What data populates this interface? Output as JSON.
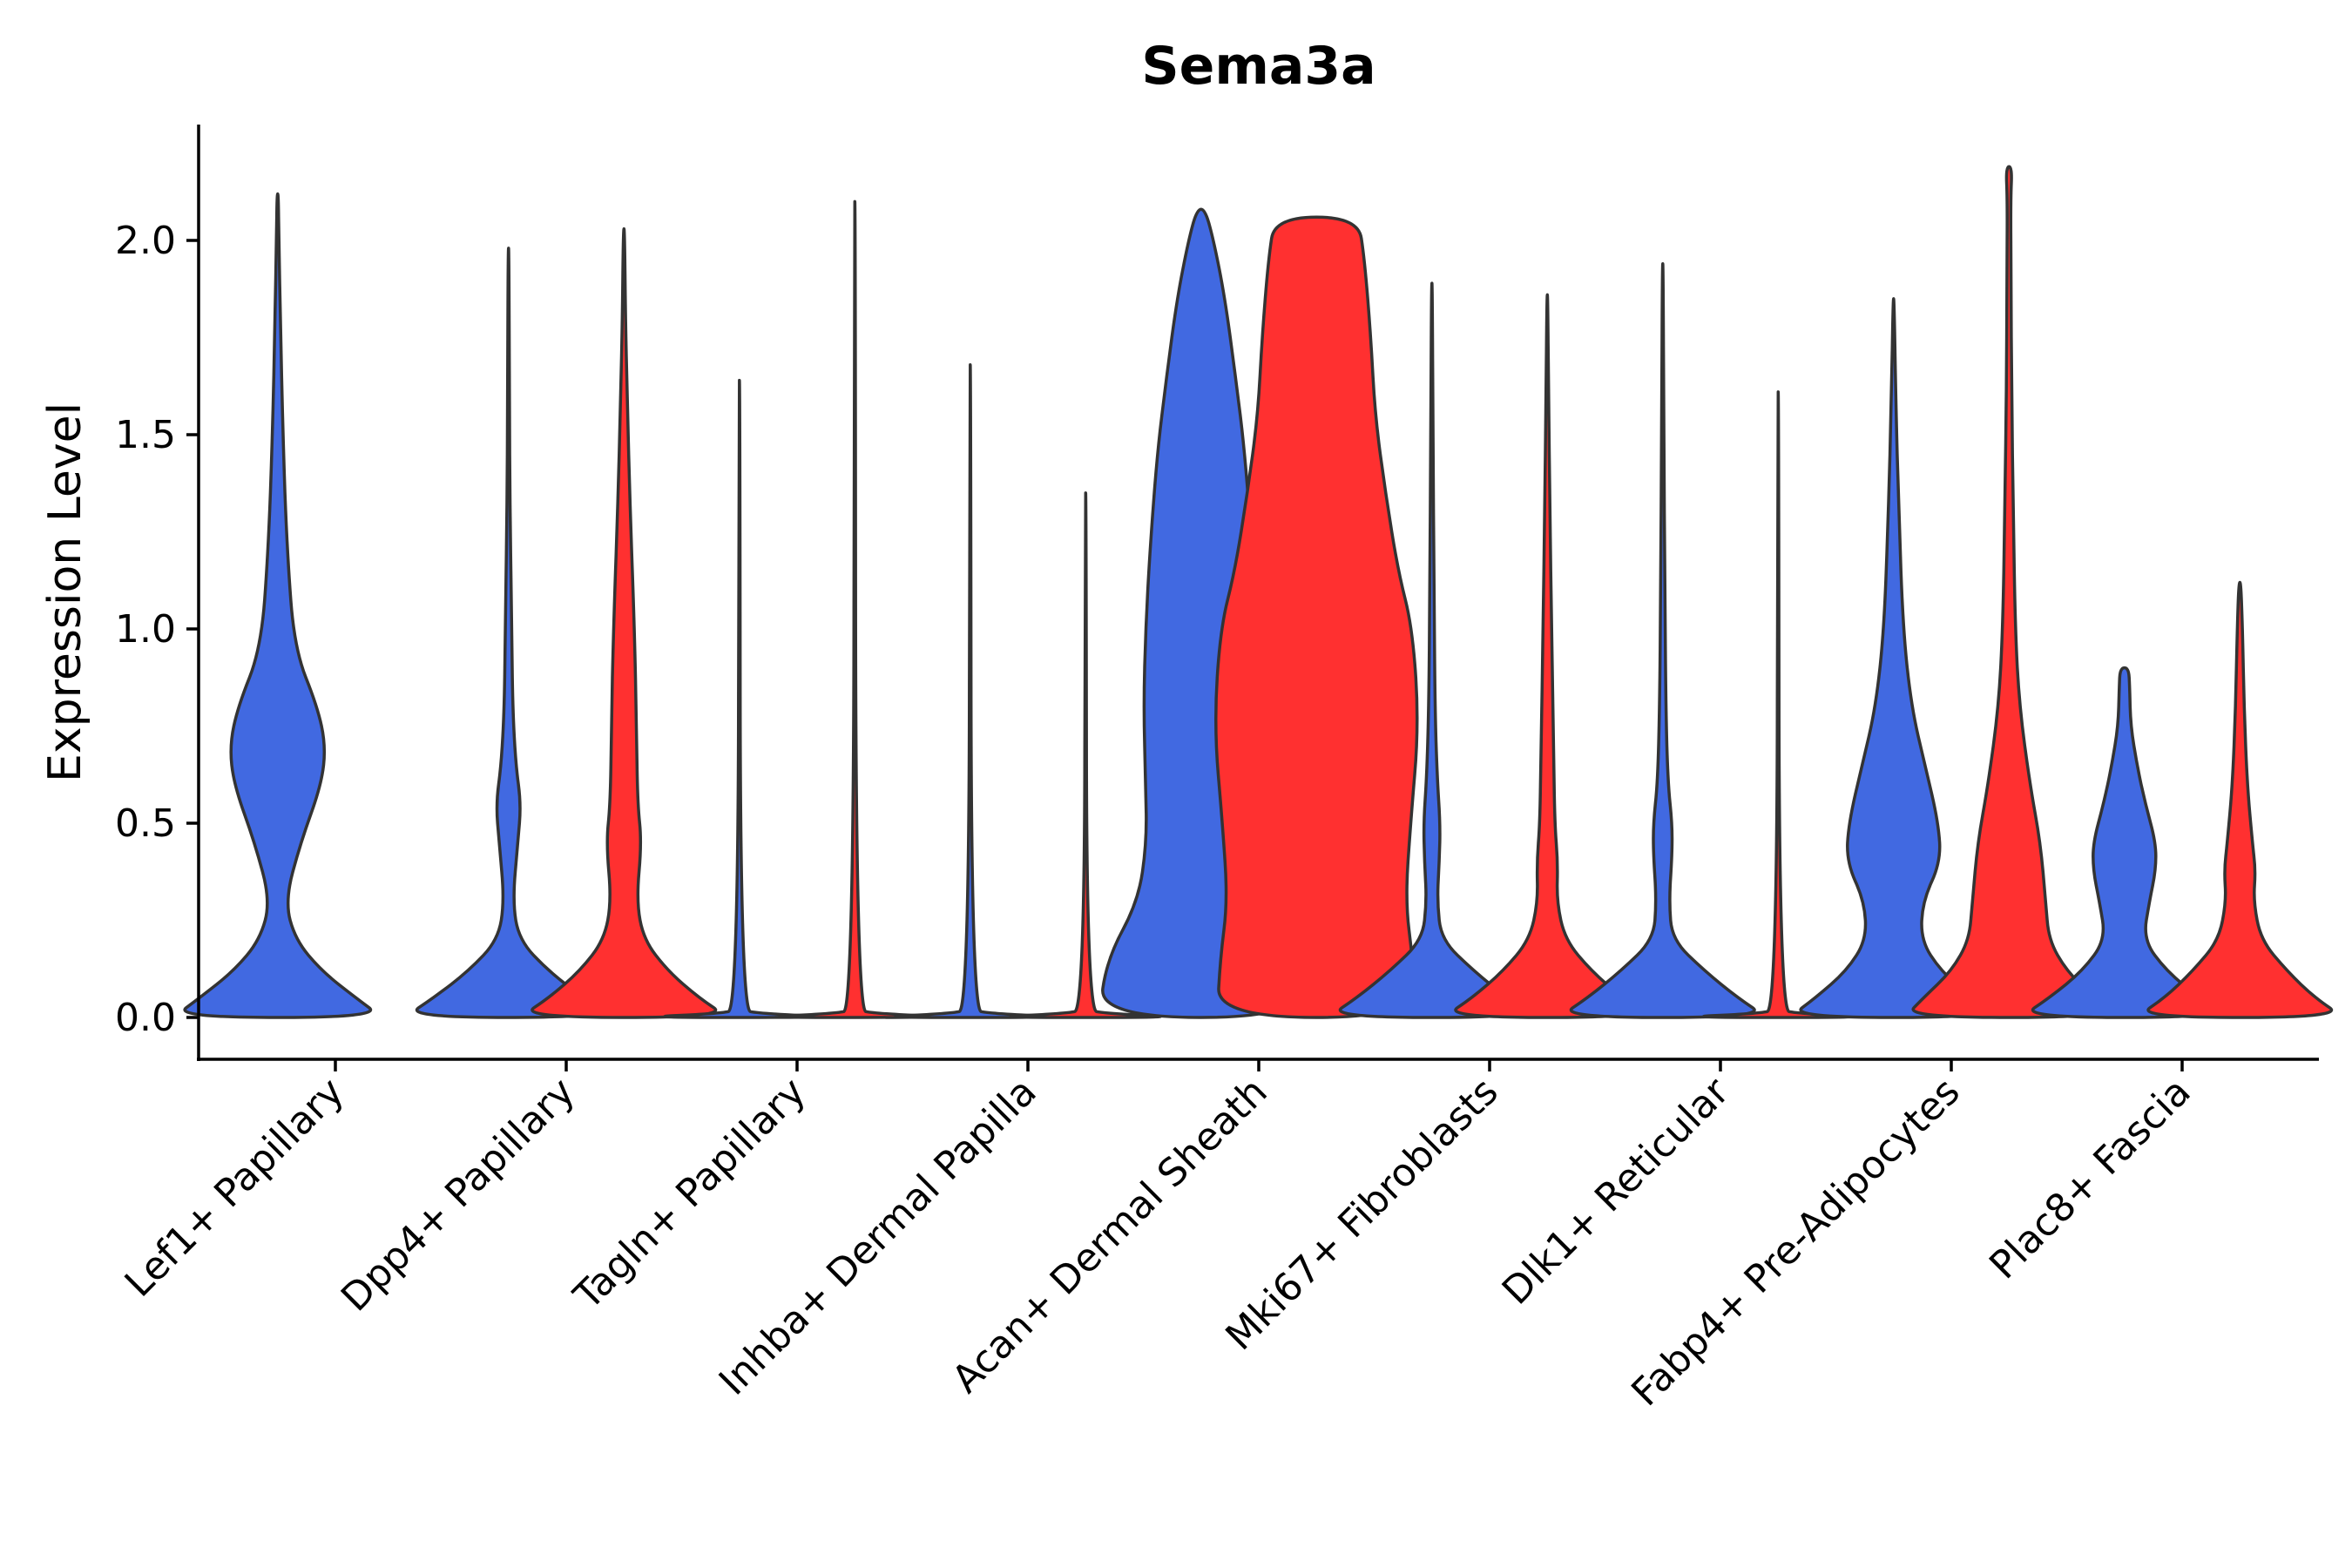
{
  "chart_data": {
    "type": "violin",
    "title": "Sema3a",
    "xlabel": "",
    "ylabel": "Expression Level",
    "ylim": [
      -0.11,
      2.3
    ],
    "yticks": [
      0.0,
      0.5,
      1.0,
      1.5,
      2.0
    ],
    "ytick_labels": [
      "0.0",
      "0.5",
      "1.0",
      "1.5",
      "2.0"
    ],
    "grid": false,
    "legend": "none",
    "colors": {
      "blue": "#4169E1",
      "red": "#FF3030",
      "outline": "#333333"
    },
    "categories": [
      "Lef1+ Papillary",
      "Dpp4+ Papillary",
      "Tagln+ Papillary",
      "Inhba+ Dermal Papilla",
      "Acan+ Dermal Sheath",
      "Mki67+ Fibroblasts",
      "Dlk1+ Reticular",
      "Fabp4+ Pre-Adipocytes",
      "Plac8+ Fascia"
    ],
    "series": [
      {
        "category": "Lef1+ Papillary",
        "color": "blue",
        "max": 2.12,
        "profile": [
          [
            0,
            1
          ],
          [
            0.05,
            0.75
          ],
          [
            0.12,
            0.42
          ],
          [
            0.2,
            0.17
          ],
          [
            0.3,
            0.07
          ],
          [
            0.45,
            0.22
          ],
          [
            0.6,
            0.42
          ],
          [
            0.7,
            0.46
          ],
          [
            0.8,
            0.38
          ],
          [
            0.95,
            0.16
          ],
          [
            1.2,
            0.09
          ],
          [
            1.5,
            0.05
          ],
          [
            1.8,
            0.025
          ],
          [
            2.0,
            0.012
          ],
          [
            2.12,
            0.006
          ]
        ]
      },
      {
        "category": "Dpp4+ Papillary",
        "color": "blue",
        "max": 1.98,
        "profile": [
          [
            0,
            1
          ],
          [
            0.05,
            0.72
          ],
          [
            0.12,
            0.38
          ],
          [
            0.2,
            0.1
          ],
          [
            0.3,
            0.04
          ],
          [
            0.45,
            0.09
          ],
          [
            0.55,
            0.12
          ],
          [
            0.65,
            0.07
          ],
          [
            0.8,
            0.04
          ],
          [
            1.0,
            0.03
          ],
          [
            1.3,
            0.015
          ],
          [
            1.6,
            0.008
          ],
          [
            1.98,
            0.004
          ]
        ]
      },
      {
        "category": "Dpp4+ Papillary",
        "color": "red",
        "max": 2.03,
        "profile": [
          [
            0,
            1
          ],
          [
            0.05,
            0.72
          ],
          [
            0.12,
            0.42
          ],
          [
            0.2,
            0.19
          ],
          [
            0.3,
            0.12
          ],
          [
            0.45,
            0.17
          ],
          [
            0.55,
            0.13
          ],
          [
            0.75,
            0.12
          ],
          [
            1.0,
            0.1
          ],
          [
            1.3,
            0.06
          ],
          [
            1.6,
            0.03
          ],
          [
            1.8,
            0.015
          ],
          [
            2.03,
            0.005
          ]
        ]
      },
      {
        "category": "Tagln+ Papillary",
        "color": "blue",
        "max": 1.64,
        "profile": [
          [
            0,
            1
          ],
          [
            0.01,
            0.2
          ],
          [
            0.02,
            0.01
          ],
          [
            1.64,
            0.005
          ]
        ]
      },
      {
        "category": "Tagln+ Papillary",
        "color": "red",
        "max": 2.1,
        "profile": [
          [
            0,
            1
          ],
          [
            0.01,
            0.2
          ],
          [
            0.02,
            0.01
          ],
          [
            2.1,
            0.005
          ]
        ]
      },
      {
        "category": "Inhba+ Dermal Papilla",
        "color": "blue",
        "max": 1.68,
        "profile": [
          [
            0,
            1
          ],
          [
            0.01,
            0.2
          ],
          [
            0.02,
            0.01
          ],
          [
            1.68,
            0.005
          ]
        ]
      },
      {
        "category": "Inhba+ Dermal Papilla",
        "color": "red",
        "max": 1.35,
        "profile": [
          [
            0,
            1
          ],
          [
            0.01,
            0.2
          ],
          [
            0.02,
            0.01
          ],
          [
            1.35,
            0.005
          ]
        ]
      },
      {
        "category": "Acan+ Dermal Sheath",
        "color": "blue",
        "max": 2.08,
        "profile": [
          [
            0,
            0.98
          ],
          [
            0.15,
            0.9
          ],
          [
            0.3,
            0.6
          ],
          [
            0.45,
            0.52
          ],
          [
            0.6,
            0.53
          ],
          [
            0.8,
            0.55
          ],
          [
            1.0,
            0.53
          ],
          [
            1.2,
            0.49
          ],
          [
            1.45,
            0.42
          ],
          [
            1.65,
            0.33
          ],
          [
            1.85,
            0.23
          ],
          [
            2.0,
            0.12
          ],
          [
            2.08,
            0.04
          ]
        ]
      },
      {
        "category": "Acan+ Dermal Sheath",
        "color": "red",
        "max": 2.06,
        "profile": [
          [
            0,
            0.95
          ],
          [
            0.15,
            0.92
          ],
          [
            0.3,
            0.85
          ],
          [
            0.5,
            0.9
          ],
          [
            0.75,
            0.98
          ],
          [
            1.0,
            0.92
          ],
          [
            1.15,
            0.78
          ],
          [
            1.35,
            0.66
          ],
          [
            1.55,
            0.56
          ],
          [
            1.75,
            0.52
          ],
          [
            1.95,
            0.46
          ],
          [
            2.06,
            0.4
          ]
        ]
      },
      {
        "category": "Mki67+ Fibroblasts",
        "color": "blue",
        "max": 1.89,
        "profile": [
          [
            0,
            1
          ],
          [
            0.05,
            0.72
          ],
          [
            0.12,
            0.4
          ],
          [
            0.2,
            0.09
          ],
          [
            0.3,
            0.05
          ],
          [
            0.4,
            0.07
          ],
          [
            0.5,
            0.08
          ],
          [
            0.62,
            0.05
          ],
          [
            0.8,
            0.03
          ],
          [
            1.1,
            0.02
          ],
          [
            1.5,
            0.01
          ],
          [
            1.89,
            0.004
          ]
        ]
      },
      {
        "category": "Mki67+ Fibroblasts",
        "color": "red",
        "max": 1.86,
        "profile": [
          [
            0,
            1
          ],
          [
            0.05,
            0.72
          ],
          [
            0.12,
            0.42
          ],
          [
            0.2,
            0.17
          ],
          [
            0.3,
            0.09
          ],
          [
            0.4,
            0.1
          ],
          [
            0.5,
            0.07
          ],
          [
            0.7,
            0.06
          ],
          [
            1.0,
            0.04
          ],
          [
            1.3,
            0.025
          ],
          [
            1.6,
            0.012
          ],
          [
            1.86,
            0.004
          ]
        ]
      },
      {
        "category": "Dlk1+ Reticular",
        "color": "blue",
        "max": 1.94,
        "profile": [
          [
            0,
            1
          ],
          [
            0.05,
            0.72
          ],
          [
            0.12,
            0.4
          ],
          [
            0.2,
            0.09
          ],
          [
            0.3,
            0.06
          ],
          [
            0.42,
            0.09
          ],
          [
            0.5,
            0.09
          ],
          [
            0.6,
            0.05
          ],
          [
            0.8,
            0.03
          ],
          [
            1.1,
            0.02
          ],
          [
            1.5,
            0.01
          ],
          [
            1.94,
            0.004
          ]
        ]
      },
      {
        "category": "Dlk1+ Reticular",
        "color": "red",
        "max": 1.61,
        "profile": [
          [
            0,
            1
          ],
          [
            0.01,
            0.2
          ],
          [
            0.02,
            0.01
          ],
          [
            1.61,
            0.005
          ]
        ]
      },
      {
        "category": "Fabp4+ Pre-Adipocytes",
        "color": "blue",
        "max": 1.85,
        "profile": [
          [
            0,
            1
          ],
          [
            0.05,
            0.75
          ],
          [
            0.12,
            0.45
          ],
          [
            0.2,
            0.26
          ],
          [
            0.3,
            0.28
          ],
          [
            0.4,
            0.45
          ],
          [
            0.5,
            0.43
          ],
          [
            0.65,
            0.3
          ],
          [
            0.8,
            0.17
          ],
          [
            1.0,
            0.09
          ],
          [
            1.3,
            0.05
          ],
          [
            1.6,
            0.02
          ],
          [
            1.85,
            0.005
          ]
        ]
      },
      {
        "category": "Fabp4+ Pre-Adipocytes",
        "color": "red",
        "max": 2.19,
        "profile": [
          [
            0,
            1
          ],
          [
            0.05,
            0.82
          ],
          [
            0.12,
            0.55
          ],
          [
            0.2,
            0.38
          ],
          [
            0.3,
            0.35
          ],
          [
            0.45,
            0.3
          ],
          [
            0.6,
            0.2
          ],
          [
            0.8,
            0.1
          ],
          [
            1.0,
            0.06
          ],
          [
            1.3,
            0.04
          ],
          [
            1.6,
            0.025
          ],
          [
            1.9,
            0.02
          ],
          [
            2.1,
            0.015
          ],
          [
            2.19,
            0.03
          ]
        ]
      },
      {
        "category": "Plac8+ Fascia",
        "color": "blue",
        "max": 0.9,
        "profile": [
          [
            0,
            1
          ],
          [
            0.05,
            0.72
          ],
          [
            0.12,
            0.4
          ],
          [
            0.2,
            0.18
          ],
          [
            0.3,
            0.24
          ],
          [
            0.38,
            0.3
          ],
          [
            0.45,
            0.3
          ],
          [
            0.55,
            0.2
          ],
          [
            0.65,
            0.12
          ],
          [
            0.75,
            0.06
          ],
          [
            0.85,
            0.05
          ],
          [
            0.9,
            0.04
          ]
        ]
      },
      {
        "category": "Plac8+ Fascia",
        "color": "red",
        "max": 1.12,
        "profile": [
          [
            0,
            1
          ],
          [
            0.05,
            0.72
          ],
          [
            0.12,
            0.45
          ],
          [
            0.2,
            0.2
          ],
          [
            0.3,
            0.13
          ],
          [
            0.38,
            0.15
          ],
          [
            0.45,
            0.12
          ],
          [
            0.6,
            0.07
          ],
          [
            0.8,
            0.04
          ],
          [
            1.0,
            0.025
          ],
          [
            1.12,
            0.01
          ]
        ]
      }
    ]
  }
}
